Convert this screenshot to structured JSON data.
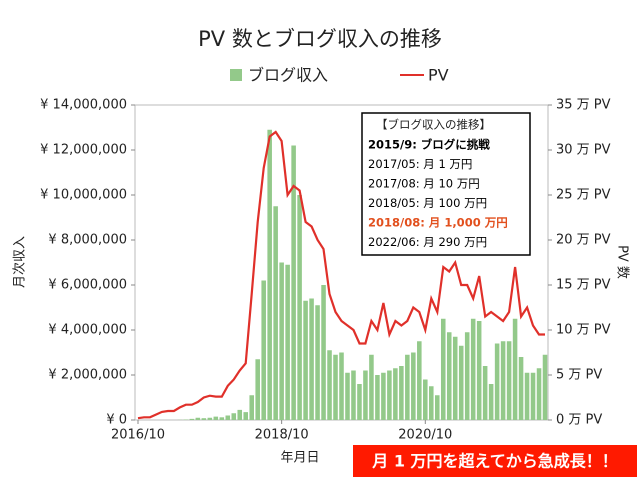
{
  "chart_data": {
    "type": "bar_line",
    "title": "PV 数とブログ収入の推移",
    "x_label": "年月日",
    "y_label": "月次収入",
    "y2_label": "PV 数",
    "categories": [
      "2016/10",
      null,
      null,
      null,
      null,
      null,
      null,
      null,
      null,
      null,
      null,
      null,
      null,
      null,
      null,
      null,
      null,
      null,
      null,
      null,
      null,
      null,
      null,
      null,
      "2018/10",
      null,
      null,
      null,
      null,
      null,
      null,
      null,
      null,
      null,
      null,
      null,
      null,
      null,
      null,
      null,
      null,
      null,
      null,
      null,
      null,
      null,
      null,
      null,
      "2020/10",
      null,
      null,
      null,
      null,
      null,
      null,
      null,
      null,
      null,
      null,
      null,
      null,
      null,
      null,
      null,
      null,
      null,
      null,
      null,
      null
    ],
    "ylim": [
      0,
      14000000
    ],
    "yticks": [
      {
        "value": 0,
        "label": "¥ 0"
      },
      {
        "value": 2000000,
        "label": "¥ 2,000,000"
      },
      {
        "value": 4000000,
        "label": "¥ 4,000,000"
      },
      {
        "value": 6000000,
        "label": "¥ 6,000,000"
      },
      {
        "value": 8000000,
        "label": "¥ 8,000,000"
      },
      {
        "value": 10000000,
        "label": "¥ 10,000,000"
      },
      {
        "value": 12000000,
        "label": "¥ 12,000,000"
      },
      {
        "value": 14000000,
        "label": "¥ 14,000,000"
      }
    ],
    "y2lim": [
      0,
      35
    ],
    "y2ticks": [
      {
        "value": 0,
        "label": "0 万 PV"
      },
      {
        "value": 5,
        "label": "5 万 PV"
      },
      {
        "value": 10,
        "label": "10 万 PV"
      },
      {
        "value": 15,
        "label": "15 万 PV"
      },
      {
        "value": 20,
        "label": "20 万 PV"
      },
      {
        "value": 25,
        "label": "25 万 PV"
      },
      {
        "value": 30,
        "label": "30 万 PV"
      },
      {
        "value": 35,
        "label": "35 万 PV"
      }
    ],
    "grid": false,
    "series": [
      {
        "name": "ブログ収入",
        "type": "bar",
        "color": "#93c98a",
        "values": [
          0,
          0,
          0,
          0,
          0,
          0,
          0,
          10000,
          20000,
          50000,
          100000,
          80000,
          100000,
          150000,
          120000,
          200000,
          300000,
          450000,
          350000,
          1100000,
          2700000,
          6200000,
          12900000,
          9500000,
          7000000,
          6900000,
          12200000,
          10000000,
          5300000,
          5400000,
          5100000,
          6000000,
          3100000,
          2900000,
          3000000,
          2100000,
          2200000,
          1600000,
          2200000,
          2900000,
          2000000,
          2100000,
          2200000,
          2300000,
          2400000,
          2900000,
          3000000,
          3500000,
          1800000,
          1500000,
          1100000,
          4500000,
          3900000,
          3700000,
          3300000,
          3900000,
          4500000,
          4400000,
          2400000,
          1600000,
          3400000,
          3500000,
          3500000,
          4500000,
          2800000,
          2100000,
          2100000,
          2300000,
          2900000
        ]
      },
      {
        "name": "PV",
        "type": "line",
        "axis": "y2",
        "color": "#e0302a",
        "values": [
          0.2,
          0.3,
          0.3,
          0.6,
          0.9,
          1.0,
          1.0,
          1.4,
          1.7,
          1.7,
          2.0,
          2.5,
          2.7,
          2.6,
          2.6,
          3.8,
          4.5,
          5.5,
          6.3,
          14,
          22,
          28,
          31.5,
          32,
          31,
          25,
          26,
          25.5,
          22,
          21.5,
          20,
          19,
          14,
          12,
          11,
          10.5,
          10,
          8.5,
          8.5,
          11,
          10,
          13,
          9.5,
          11,
          10.5,
          11,
          12.5,
          12,
          10,
          13.5,
          12,
          17,
          16.5,
          17.5,
          15,
          15,
          13.5,
          16,
          11.5,
          12,
          11.5,
          11,
          12,
          17,
          11.5,
          12.5,
          10.5,
          9.5,
          9.5
        ]
      }
    ],
    "annotation": {
      "title": "【ブログ収入の推移】",
      "lines": [
        {
          "text": "2015/9: ブログに挑戦",
          "bold": true,
          "color": "#000000"
        },
        {
          "text": "2017/05: 月 1 万円",
          "bold": false,
          "color": "#000000"
        },
        {
          "text": "2017/08: 月 10 万円",
          "bold": false,
          "color": "#000000"
        },
        {
          "text": "2018/05: 月 100 万円",
          "bold": false,
          "color": "#000000"
        },
        {
          "text": "2018/08: 月 1,000 万円",
          "bold": true,
          "color": "#e2501e"
        },
        {
          "text": "2022/06: 月 290 万円",
          "bold": false,
          "color": "#000000"
        }
      ]
    },
    "callout": {
      "text": "月 1 万円を超えてから急成長！！",
      "color": "#ff1a00"
    }
  }
}
